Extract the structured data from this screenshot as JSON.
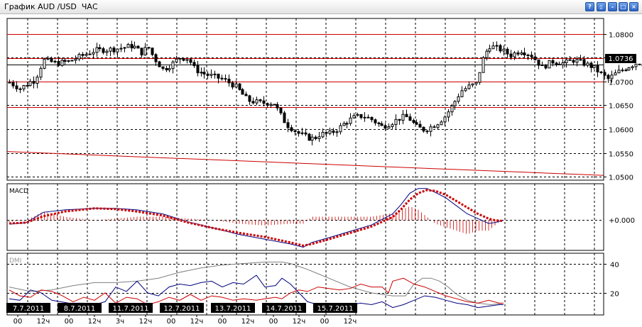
{
  "window": {
    "title": "График AUD /USD  ЧАС",
    "buttons": [
      {
        "name": "help",
        "glyph": "?"
      },
      {
        "name": "chart-type",
        "glyph": "▯"
      },
      {
        "name": "minimize",
        "glyph": "–"
      },
      {
        "name": "maximize",
        "glyph": "□"
      },
      {
        "name": "close",
        "glyph": "×"
      }
    ]
  },
  "chart_data": [
    {
      "type": "candlestick",
      "title": "AUD /USD ЧАС",
      "yticks": [
        1.05,
        1.055,
        1.06,
        1.065,
        1.07,
        1.075,
        1.08
      ],
      "ytick_labels": [
        "1.0500",
        "1.0550",
        "1.0600",
        "1.0650",
        "1.0700",
        "1.0750",
        "1.0800"
      ],
      "ylim": [
        1.0493,
        1.0832
      ],
      "last_price": 1.0736,
      "last_price_label": "1.0736",
      "horizontal_lines": [
        1.08,
        1.0749,
        1.07,
        1.0646
      ],
      "trend_line": {
        "start": 1.0553,
        "end": 1.0503
      },
      "candle_count": 184,
      "anchors": [
        [
          0,
          1.0698
        ],
        [
          5,
          1.0685
        ],
        [
          10,
          1.07
        ],
        [
          12,
          1.0702
        ],
        [
          16,
          1.0745
        ],
        [
          22,
          1.0738
        ],
        [
          28,
          1.0742
        ],
        [
          33,
          1.0752
        ],
        [
          40,
          1.0765
        ],
        [
          50,
          1.0768
        ],
        [
          58,
          1.0775
        ],
        [
          62,
          1.076
        ],
        [
          65,
          1.0773
        ],
        [
          68,
          1.0748
        ],
        [
          72,
          1.0725
        ],
        [
          76,
          1.0735
        ],
        [
          80,
          1.075
        ],
        [
          84,
          1.0748
        ],
        [
          87,
          1.0725
        ],
        [
          92,
          1.0715
        ],
        [
          100,
          1.0705
        ],
        [
          106,
          1.069
        ],
        [
          112,
          1.066
        ],
        [
          118,
          1.0655
        ],
        [
          124,
          1.0655
        ],
        [
          130,
          1.061
        ],
        [
          136,
          1.059
        ],
        [
          140,
          1.0582
        ],
        [
          143,
          1.058
        ],
        [
          146,
          1.059
        ],
        [
          150,
          1.059
        ],
        [
          154,
          1.06
        ],
        [
          158,
          1.0615
        ],
        [
          162,
          1.0625
        ],
        [
          166,
          1.0628
        ],
        [
          170,
          1.062
        ],
        [
          175,
          1.0605
        ],
        [
          180,
          1.0615
        ],
        [
          184,
          1.0625
        ],
        [
          187,
          1.0625
        ],
        [
          191,
          1.0605
        ],
        [
          195,
          1.0598
        ],
        [
          200,
          1.061
        ],
        [
          204,
          1.0625
        ],
        [
          208,
          1.065
        ],
        [
          212,
          1.068
        ],
        [
          216,
          1.069
        ],
        [
          219,
          1.0695
        ],
        [
          222,
          1.0745
        ],
        [
          225,
          1.0775
        ],
        [
          230,
          1.0768
        ],
        [
          235,
          1.0755
        ],
        [
          240,
          1.0765
        ],
        [
          245,
          1.0755
        ],
        [
          250,
          1.073
        ],
        [
          255,
          1.0742
        ],
        [
          260,
          1.0738
        ],
        [
          265,
          1.0745
        ],
        [
          270,
          1.0737
        ],
        [
          274,
          1.073
        ],
        [
          278,
          1.0715
        ],
        [
          281,
          1.0705
        ],
        [
          285,
          1.0718
        ],
        [
          290,
          1.073
        ],
        [
          295,
          1.074
        ],
        [
          299,
          1.0736
        ]
      ],
      "dates": [
        "7.7.2011",
        "8.7.2011",
        "11.7.2011",
        "12.7.2011",
        "13.7.2011",
        "14.7.2011",
        "15.7.2011"
      ],
      "hour_labels": [
        "00",
        "12ч",
        "00",
        "12ч",
        "3ч",
        "12ч",
        "00",
        "12ч",
        "00",
        "12ч",
        "00",
        "12ч",
        "00",
        "12ч"
      ],
      "hours_label_positions": [
        0,
        12,
        24,
        36,
        48,
        60,
        72,
        84,
        96,
        108,
        120,
        132,
        144,
        156
      ]
    },
    {
      "type": "line",
      "title": "MACD",
      "zero_label": "+0.000",
      "series": [
        {
          "role": "macd",
          "color": "#00007f",
          "points": [
            [
              0,
              -0.0005
            ],
            [
              8,
              -0.0003
            ],
            [
              16,
              0.001
            ],
            [
              26,
              0.0013
            ],
            [
              40,
              0.0015
            ],
            [
              50,
              0.0015
            ],
            [
              60,
              0.0013
            ],
            [
              72,
              0.0008
            ],
            [
              84,
              -0.0002
            ],
            [
              96,
              -0.001
            ],
            [
              108,
              -0.0018
            ],
            [
              120,
              -0.0024
            ],
            [
              132,
              -0.003
            ],
            [
              138,
              -0.0034
            ],
            [
              142,
              -0.0028
            ],
            [
              150,
              -0.0022
            ],
            [
              160,
              -0.0014
            ],
            [
              170,
              -0.0006
            ],
            [
              180,
              0.0008
            ],
            [
              184,
              0.002
            ],
            [
              188,
              0.0034
            ],
            [
              192,
              0.004
            ],
            [
              196,
              0.004
            ],
            [
              200,
              0.0035
            ],
            [
              205,
              0.0028
            ],
            [
              210,
              0.0018
            ],
            [
              215,
              0.0008
            ],
            [
              220,
              0.0002
            ],
            [
              225,
              -0.0004
            ],
            [
              228,
              -0.0003
            ],
            [
              232,
              0.0
            ]
          ]
        },
        {
          "role": "signal",
          "color": "#cc0000",
          "points": [
            [
              0,
              -0.0004
            ],
            [
              8,
              -0.0003
            ],
            [
              16,
              0.0005
            ],
            [
              26,
              0.0011
            ],
            [
              40,
              0.0015
            ],
            [
              50,
              0.0014
            ],
            [
              60,
              0.0011
            ],
            [
              72,
              0.0006
            ],
            [
              84,
              -0.0003
            ],
            [
              96,
              -0.001
            ],
            [
              108,
              -0.0016
            ],
            [
              120,
              -0.0021
            ],
            [
              132,
              -0.0028
            ],
            [
              138,
              -0.0032
            ],
            [
              142,
              -0.003
            ],
            [
              150,
              -0.0024
            ],
            [
              160,
              -0.0016
            ],
            [
              170,
              -0.0008
            ],
            [
              180,
              0.0004
            ],
            [
              184,
              0.0014
            ],
            [
              188,
              0.0026
            ],
            [
              192,
              0.0034
            ],
            [
              196,
              0.0038
            ],
            [
              200,
              0.0037
            ],
            [
              205,
              0.0032
            ],
            [
              210,
              0.0024
            ],
            [
              215,
              0.0016
            ],
            [
              220,
              0.0008
            ],
            [
              225,
              0.0002
            ],
            [
              228,
              0.0
            ],
            [
              232,
              -0.0001
            ]
          ]
        }
      ],
      "ylim": [
        -0.0038,
        0.0046
      ]
    },
    {
      "type": "line",
      "title": "DMI",
      "yticks": [
        20,
        40
      ],
      "ylim": [
        5,
        47
      ],
      "series": [
        {
          "role": "adx",
          "color": "#7f7f7f",
          "points": [
            [
              0,
              24
            ],
            [
              10,
              21
            ],
            [
              20,
              22
            ],
            [
              30,
              25
            ],
            [
              40,
              27
            ],
            [
              50,
              27
            ],
            [
              60,
              28
            ],
            [
              70,
              30
            ],
            [
              80,
              34
            ],
            [
              90,
              37
            ],
            [
              100,
              39
            ],
            [
              110,
              40
            ],
            [
              120,
              41
            ],
            [
              128,
              41
            ],
            [
              132,
              40
            ],
            [
              136,
              38
            ],
            [
              140,
              36
            ],
            [
              145,
              33
            ],
            [
              150,
              30
            ],
            [
              160,
              24
            ],
            [
              170,
              20
            ],
            [
              180,
              18
            ],
            [
              186,
              18
            ],
            [
              190,
              26
            ],
            [
              194,
              30
            ],
            [
              198,
              30
            ],
            [
              202,
              28
            ],
            [
              206,
              24
            ],
            [
              210,
              19
            ],
            [
              215,
              15
            ],
            [
              220,
              13
            ],
            [
              226,
              12
            ],
            [
              232,
              13
            ]
          ]
        },
        {
          "role": "plus-di",
          "color": "#00007f",
          "points": [
            [
              0,
              16
            ],
            [
              5,
              15
            ],
            [
              10,
              22
            ],
            [
              15,
              20
            ],
            [
              20,
              15
            ],
            [
              28,
              13
            ],
            [
              35,
              13
            ],
            [
              40,
              12
            ],
            [
              45,
              14
            ],
            [
              50,
              24
            ],
            [
              55,
              21
            ],
            [
              60,
              28
            ],
            [
              65,
              20
            ],
            [
              70,
              18
            ],
            [
              75,
              24
            ],
            [
              80,
              26
            ],
            [
              85,
              25
            ],
            [
              90,
              27
            ],
            [
              95,
              28
            ],
            [
              100,
              24
            ],
            [
              105,
              27
            ],
            [
              110,
              26
            ],
            [
              116,
              32
            ],
            [
              120,
              24
            ],
            [
              125,
              25
            ],
            [
              128,
              30
            ],
            [
              132,
              26
            ],
            [
              136,
              20
            ],
            [
              140,
              14
            ],
            [
              145,
              12
            ],
            [
              150,
              10
            ],
            [
              155,
              11
            ],
            [
              160,
              12
            ],
            [
              165,
              13
            ],
            [
              170,
              12
            ],
            [
              175,
              14
            ],
            [
              180,
              10
            ],
            [
              185,
              12
            ],
            [
              190,
              15
            ],
            [
              195,
              18
            ],
            [
              200,
              17
            ],
            [
              205,
              15
            ],
            [
              210,
              13
            ],
            [
              215,
              12
            ],
            [
              220,
              10
            ],
            [
              225,
              11
            ],
            [
              230,
              12
            ],
            [
              232,
              12
            ]
          ]
        },
        {
          "role": "minus-di",
          "color": "#cc0000",
          "points": [
            [
              0,
              22
            ],
            [
              5,
              18
            ],
            [
              10,
              17
            ],
            [
              15,
              22
            ],
            [
              20,
              21
            ],
            [
              25,
              18
            ],
            [
              30,
              14
            ],
            [
              35,
              17
            ],
            [
              40,
              15
            ],
            [
              45,
              20
            ],
            [
              50,
              13
            ],
            [
              55,
              17
            ],
            [
              60,
              16
            ],
            [
              65,
              12
            ],
            [
              70,
              14
            ],
            [
              75,
              17
            ],
            [
              80,
              15
            ],
            [
              85,
              19
            ],
            [
              90,
              15
            ],
            [
              95,
              18
            ],
            [
              100,
              17
            ],
            [
              105,
              15
            ],
            [
              110,
              16
            ],
            [
              116,
              15
            ],
            [
              120,
              16
            ],
            [
              125,
              17
            ],
            [
              128,
              16
            ],
            [
              132,
              20
            ],
            [
              136,
              22
            ],
            [
              140,
              21
            ],
            [
              145,
              24
            ],
            [
              150,
              23
            ],
            [
              155,
              22
            ],
            [
              160,
              23
            ],
            [
              165,
              26
            ],
            [
              170,
              24
            ],
            [
              175,
              24
            ],
            [
              178,
              20
            ],
            [
              180,
              28
            ],
            [
              185,
              30
            ],
            [
              190,
              26
            ],
            [
              195,
              24
            ],
            [
              200,
              21
            ],
            [
              205,
              18
            ],
            [
              210,
              16
            ],
            [
              215,
              14
            ],
            [
              220,
              13
            ],
            [
              225,
              15
            ],
            [
              230,
              13
            ],
            [
              232,
              13
            ]
          ]
        }
      ]
    }
  ]
}
